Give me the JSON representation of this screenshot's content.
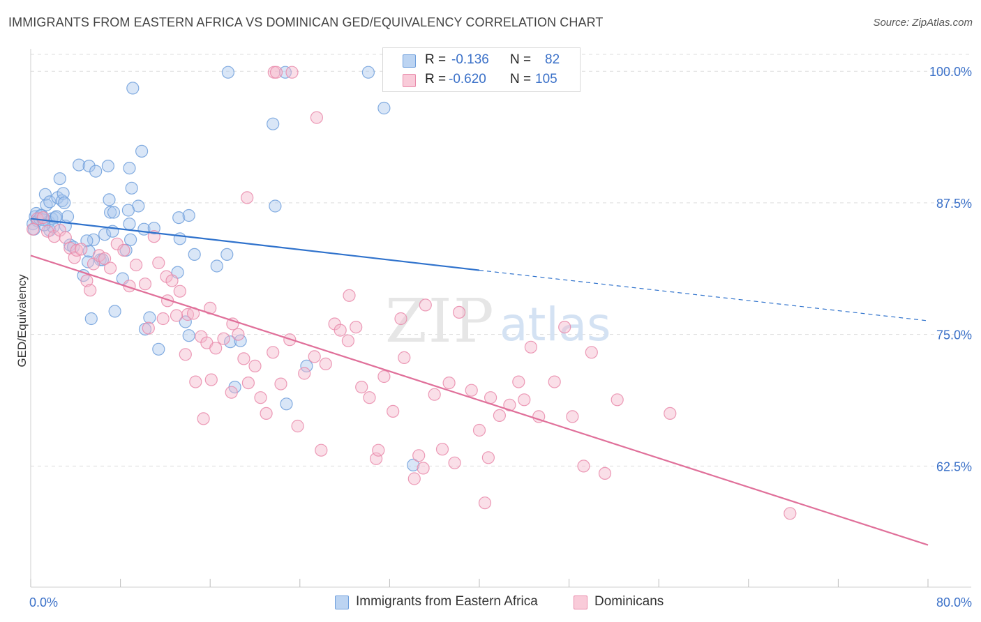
{
  "title": "IMMIGRANTS FROM EASTERN AFRICA VS DOMINICAN GED/EQUIVALENCY CORRELATION CHART",
  "source": "Source: ZipAtlas.com",
  "watermark": {
    "zip": "ZIP",
    "atlas": "atlas"
  },
  "colors": {
    "blue_fill": "#aac8ee",
    "blue_stroke": "#6f9fdc",
    "blue_line": "#2f72cc",
    "pink_fill": "#f5b9cb",
    "pink_stroke": "#e98aaa",
    "pink_line": "#e0709a",
    "axis_label": "#3a70c8",
    "grid": "#dddddd"
  },
  "stats": [
    {
      "r_label": "R =",
      "r_value": "-0.136",
      "n_label": "N =",
      "n_value": "82"
    },
    {
      "r_label": "R =",
      "r_value": "-0.620",
      "n_label": "N =",
      "n_value": "105"
    }
  ],
  "chart_data": {
    "type": "scatter",
    "title": "IMMIGRANTS FROM EASTERN AFRICA VS DOMINICAN GED/EQUIVALENCY CORRELATION CHART",
    "xlabel": "",
    "ylabel": "GED/Equivalency",
    "x_ticks": [
      "0.0%",
      "80.0%"
    ],
    "y_ticks": [
      "100.0%",
      "87.5%",
      "75.0%",
      "62.5%"
    ],
    "y_tick_values": [
      100.0,
      87.5,
      75.0,
      62.5
    ],
    "xlim": [
      0,
      80
    ],
    "ylim": [
      51.0,
      102.0
    ],
    "grid": true,
    "legend_position": "bottom-center",
    "series": [
      {
        "name": "Immigrants from Eastern Africa",
        "color": "#aac8ee",
        "trend": {
          "x0": 0,
          "y0": 86.0,
          "x1": 40,
          "y1": 81.1,
          "dashed_to_x": 80,
          "dashed_to_y": 76.3
        },
        "points": [
          [
            0.2,
            85.5
          ],
          [
            0.4,
            86.2
          ],
          [
            0.5,
            86.5
          ],
          [
            0.6,
            85.8
          ],
          [
            0.8,
            86.0
          ],
          [
            1.0,
            86.3
          ],
          [
            1.1,
            85.9
          ],
          [
            1.3,
            88.3
          ],
          [
            1.4,
            87.3
          ],
          [
            1.6,
            85.7
          ],
          [
            1.7,
            87.6
          ],
          [
            1.9,
            86.0
          ],
          [
            2.2,
            86.1
          ],
          [
            2.4,
            88.0
          ],
          [
            2.6,
            89.8
          ],
          [
            2.8,
            87.7
          ],
          [
            2.9,
            88.4
          ],
          [
            3.0,
            87.5
          ],
          [
            3.1,
            85.3
          ],
          [
            3.3,
            86.2
          ],
          [
            3.5,
            83.5
          ],
          [
            3.8,
            83.3
          ],
          [
            4.3,
            91.1
          ],
          [
            5.2,
            91.0
          ],
          [
            5.8,
            90.5
          ],
          [
            6.9,
            91.0
          ],
          [
            8.8,
            90.8
          ],
          [
            7.0,
            87.8
          ],
          [
            7.1,
            86.6
          ],
          [
            7.4,
            86.6
          ],
          [
            9.0,
            88.9
          ],
          [
            9.6,
            87.2
          ],
          [
            8.7,
            86.8
          ],
          [
            10.1,
            85.0
          ],
          [
            11.0,
            85.1
          ],
          [
            13.2,
            86.1
          ],
          [
            14.1,
            86.3
          ],
          [
            5.6,
            84.0
          ],
          [
            6.6,
            84.5
          ],
          [
            8.8,
            85.5
          ],
          [
            7.3,
            84.8
          ],
          [
            8.9,
            84.0
          ],
          [
            13.3,
            84.1
          ],
          [
            5.0,
            83.9
          ],
          [
            5.2,
            82.9
          ],
          [
            6.2,
            82.1
          ],
          [
            6.4,
            82.1
          ],
          [
            5.1,
            81.9
          ],
          [
            8.5,
            83.0
          ],
          [
            4.7,
            80.6
          ],
          [
            8.2,
            80.3
          ],
          [
            13.1,
            80.9
          ],
          [
            14.6,
            82.6
          ],
          [
            16.6,
            81.5
          ],
          [
            17.5,
            82.6
          ],
          [
            5.4,
            76.5
          ],
          [
            7.5,
            77.2
          ],
          [
            10.2,
            75.5
          ],
          [
            10.6,
            76.6
          ],
          [
            11.4,
            73.6
          ],
          [
            13.8,
            76.2
          ],
          [
            14.1,
            74.9
          ],
          [
            17.8,
            74.3
          ],
          [
            18.7,
            74.4
          ],
          [
            17.6,
            99.9
          ],
          [
            18.2,
            70.0
          ],
          [
            22.7,
            99.9
          ],
          [
            21.8,
            87.2
          ],
          [
            21.6,
            95.0
          ],
          [
            22.8,
            68.4
          ],
          [
            24.6,
            72.0
          ],
          [
            30.1,
            99.9
          ],
          [
            31.5,
            96.5
          ],
          [
            34.1,
            62.6
          ],
          [
            9.1,
            98.4
          ],
          [
            9.9,
            92.4
          ],
          [
            1.7,
            84.9
          ],
          [
            2.0,
            85.2
          ],
          [
            2.3,
            86.2
          ],
          [
            0.9,
            86.3
          ],
          [
            1.2,
            85.4
          ],
          [
            0.3,
            85.0
          ]
        ]
      },
      {
        "name": "Dominicans",
        "color": "#f5b9cb",
        "trend": {
          "x0": 0,
          "y0": 82.5,
          "x1": 80,
          "y1": 55.0
        },
        "points": [
          [
            0.2,
            85.0
          ],
          [
            0.6,
            86.0
          ],
          [
            1.1,
            86.1
          ],
          [
            1.5,
            84.8
          ],
          [
            2.1,
            84.3
          ],
          [
            2.6,
            84.9
          ],
          [
            3.1,
            84.2
          ],
          [
            3.5,
            83.2
          ],
          [
            3.9,
            82.3
          ],
          [
            4.1,
            83.0
          ],
          [
            4.5,
            83.1
          ],
          [
            5.0,
            80.1
          ],
          [
            5.3,
            79.2
          ],
          [
            5.6,
            81.7
          ],
          [
            6.1,
            82.5
          ],
          [
            6.6,
            82.2
          ],
          [
            7.1,
            81.3
          ],
          [
            7.7,
            83.6
          ],
          [
            8.3,
            83.0
          ],
          [
            8.8,
            79.6
          ],
          [
            9.4,
            81.6
          ],
          [
            10.2,
            79.8
          ],
          [
            11.0,
            84.3
          ],
          [
            11.4,
            81.8
          ],
          [
            12.1,
            80.5
          ],
          [
            12.6,
            80.1
          ],
          [
            13.3,
            79.1
          ],
          [
            14.0,
            76.9
          ],
          [
            14.5,
            77.0
          ],
          [
            15.2,
            74.8
          ],
          [
            15.7,
            74.2
          ],
          [
            16.0,
            77.5
          ],
          [
            16.5,
            73.7
          ],
          [
            17.2,
            74.6
          ],
          [
            18.0,
            76.0
          ],
          [
            18.5,
            75.0
          ],
          [
            19.0,
            72.7
          ],
          [
            19.4,
            70.4
          ],
          [
            20.0,
            72.0
          ],
          [
            20.5,
            69.0
          ],
          [
            21.0,
            67.5
          ],
          [
            21.6,
            73.3
          ],
          [
            22.3,
            70.3
          ],
          [
            23.1,
            74.5
          ],
          [
            23.8,
            66.3
          ],
          [
            24.4,
            71.3
          ],
          [
            25.3,
            72.9
          ],
          [
            25.9,
            64.0
          ],
          [
            26.3,
            72.2
          ],
          [
            27.1,
            76.0
          ],
          [
            27.6,
            75.4
          ],
          [
            28.3,
            74.4
          ],
          [
            29.0,
            75.7
          ],
          [
            29.5,
            70.0
          ],
          [
            30.2,
            69.0
          ],
          [
            30.8,
            63.2
          ],
          [
            31.5,
            71.0
          ],
          [
            32.3,
            67.7
          ],
          [
            33.0,
            76.5
          ],
          [
            34.2,
            61.3
          ],
          [
            34.6,
            63.5
          ],
          [
            35.2,
            77.8
          ],
          [
            36.0,
            69.3
          ],
          [
            36.7,
            64.1
          ],
          [
            37.3,
            70.4
          ],
          [
            38.2,
            77.1
          ],
          [
            39.3,
            69.7
          ],
          [
            40.0,
            65.9
          ],
          [
            40.5,
            59.0
          ],
          [
            41.0,
            69.0
          ],
          [
            41.8,
            67.3
          ],
          [
            42.7,
            68.3
          ],
          [
            43.5,
            70.5
          ],
          [
            44.6,
            73.8
          ],
          [
            45.3,
            67.2
          ],
          [
            46.7,
            70.5
          ],
          [
            47.6,
            75.7
          ],
          [
            48.3,
            67.2
          ],
          [
            50.0,
            73.3
          ],
          [
            51.2,
            61.8
          ],
          [
            52.3,
            68.8
          ],
          [
            13.0,
            76.8
          ],
          [
            13.8,
            73.1
          ],
          [
            15.4,
            67.0
          ],
          [
            16.1,
            70.7
          ],
          [
            17.9,
            69.5
          ],
          [
            19.3,
            88.0
          ],
          [
            21.7,
            99.9
          ],
          [
            21.9,
            99.9
          ],
          [
            23.3,
            99.9
          ],
          [
            25.5,
            95.6
          ],
          [
            28.4,
            78.7
          ],
          [
            31.0,
            64.0
          ],
          [
            33.3,
            72.8
          ],
          [
            35.0,
            62.3
          ],
          [
            37.8,
            62.8
          ],
          [
            40.8,
            63.3
          ],
          [
            44.0,
            68.8
          ],
          [
            49.3,
            62.5
          ],
          [
            57.0,
            67.5
          ],
          [
            67.7,
            58.0
          ],
          [
            12.2,
            78.2
          ],
          [
            11.8,
            76.5
          ],
          [
            14.7,
            70.5
          ],
          [
            10.5,
            75.6
          ]
        ]
      }
    ]
  },
  "bottom_legend": [
    {
      "label": "Immigrants from Eastern Africa"
    },
    {
      "label": "Dominicans"
    }
  ]
}
